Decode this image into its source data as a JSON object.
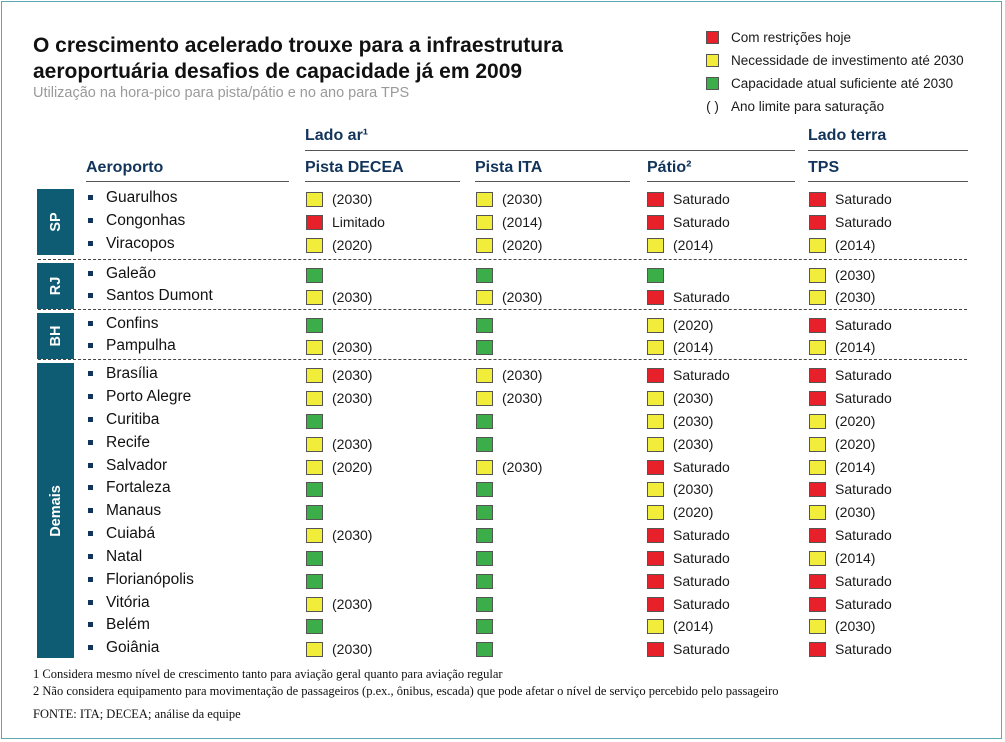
{
  "title": "O crescimento acelerado trouxe para a infraestrutura aeroportuária desafios de capacidade já em 2009",
  "subtitle": "Utilização na hora-pico para pista/pátio e no ano para TPS",
  "legend": [
    {
      "label": "Com restrições hoje",
      "color": "#e8202a"
    },
    {
      "label": "Necessidade de investimento até 2030",
      "color": "#f2ec3a"
    },
    {
      "label": "Capacidade atual suficiente até 2030",
      "color": "#3cae49"
    },
    {
      "label": "Ano limite para saturação",
      "symbol": "( )"
    }
  ],
  "headers": {
    "lado_ar": "Lado ar¹",
    "lado_terra": "Lado terra",
    "aeroporto": "Aeroporto",
    "columns": [
      "Pista DECEA",
      "Pista ITA",
      "Pátio²",
      "TPS"
    ]
  },
  "colors": {
    "R": "#e8202a",
    "Y": "#f2ec3a",
    "G": "#3cae49",
    "group_bg": "#0e5c74"
  },
  "chart_data": {
    "type": "table",
    "groups": [
      {
        "name": "SP",
        "airports": [
          {
            "name": "Guarulhos",
            "cells": [
              [
                "Y",
                "(2030)"
              ],
              [
                "Y",
                "(2030)"
              ],
              [
                "R",
                "Saturado"
              ],
              [
                "R",
                "Saturado"
              ]
            ]
          },
          {
            "name": "Congonhas",
            "cells": [
              [
                "R",
                "Limitado"
              ],
              [
                "Y",
                "(2014)"
              ],
              [
                "R",
                "Saturado"
              ],
              [
                "R",
                "Saturado"
              ]
            ]
          },
          {
            "name": "Viracopos",
            "cells": [
              [
                "Y",
                "(2020)"
              ],
              [
                "Y",
                "(2020)"
              ],
              [
                "Y",
                "(2014)"
              ],
              [
                "Y",
                "(2014)"
              ]
            ]
          }
        ]
      },
      {
        "name": "RJ",
        "airports": [
          {
            "name": "Galeão",
            "cells": [
              [
                "G",
                ""
              ],
              [
                "G",
                ""
              ],
              [
                "G",
                ""
              ],
              [
                "Y",
                "(2030)"
              ]
            ]
          },
          {
            "name": "Santos Dumont",
            "cells": [
              [
                "Y",
                "(2030)"
              ],
              [
                "Y",
                "(2030)"
              ],
              [
                "R",
                "Saturado"
              ],
              [
                "Y",
                "(2030)"
              ]
            ]
          }
        ]
      },
      {
        "name": "BH",
        "airports": [
          {
            "name": "Confins",
            "cells": [
              [
                "G",
                ""
              ],
              [
                "G",
                ""
              ],
              [
                "Y",
                "(2020)"
              ],
              [
                "R",
                "Saturado"
              ]
            ]
          },
          {
            "name": "Pampulha",
            "cells": [
              [
                "Y",
                "(2030)"
              ],
              [
                "G",
                ""
              ],
              [
                "Y",
                "(2014)"
              ],
              [
                "Y",
                "(2014)"
              ]
            ]
          }
        ]
      },
      {
        "name": "Demais",
        "airports": [
          {
            "name": "Brasília",
            "cells": [
              [
                "Y",
                "(2030)"
              ],
              [
                "Y",
                "(2030)"
              ],
              [
                "R",
                "Saturado"
              ],
              [
                "R",
                "Saturado"
              ]
            ]
          },
          {
            "name": "Porto Alegre",
            "cells": [
              [
                "Y",
                "(2030)"
              ],
              [
                "Y",
                "(2030)"
              ],
              [
                "Y",
                "(2030)"
              ],
              [
                "R",
                "Saturado"
              ]
            ]
          },
          {
            "name": "Curitiba",
            "cells": [
              [
                "G",
                ""
              ],
              [
                "G",
                ""
              ],
              [
                "Y",
                "(2030)"
              ],
              [
                "Y",
                "(2020)"
              ]
            ]
          },
          {
            "name": "Recife",
            "cells": [
              [
                "Y",
                "(2030)"
              ],
              [
                "G",
                ""
              ],
              [
                "Y",
                "(2030)"
              ],
              [
                "Y",
                "(2020)"
              ]
            ]
          },
          {
            "name": "Salvador",
            "cells": [
              [
                "Y",
                "(2020)"
              ],
              [
                "Y",
                "(2030)"
              ],
              [
                "R",
                "Saturado"
              ],
              [
                "Y",
                "(2014)"
              ]
            ]
          },
          {
            "name": "Fortaleza",
            "cells": [
              [
                "G",
                ""
              ],
              [
                "G",
                ""
              ],
              [
                "Y",
                "(2030)"
              ],
              [
                "R",
                "Saturado"
              ]
            ]
          },
          {
            "name": "Manaus",
            "cells": [
              [
                "G",
                ""
              ],
              [
                "G",
                ""
              ],
              [
                "Y",
                "(2020)"
              ],
              [
                "Y",
                "(2030)"
              ]
            ]
          },
          {
            "name": "Cuiabá",
            "cells": [
              [
                "Y",
                "(2030)"
              ],
              [
                "G",
                ""
              ],
              [
                "R",
                "Saturado"
              ],
              [
                "R",
                "Saturado"
              ]
            ]
          },
          {
            "name": "Natal",
            "cells": [
              [
                "G",
                ""
              ],
              [
                "G",
                ""
              ],
              [
                "R",
                "Saturado"
              ],
              [
                "Y",
                "(2014)"
              ]
            ]
          },
          {
            "name": "Florianópolis",
            "cells": [
              [
                "G",
                ""
              ],
              [
                "G",
                ""
              ],
              [
                "R",
                "Saturado"
              ],
              [
                "R",
                "Saturado"
              ]
            ]
          },
          {
            "name": "Vitória",
            "cells": [
              [
                "Y",
                "(2030)"
              ],
              [
                "G",
                ""
              ],
              [
                "R",
                "Saturado"
              ],
              [
                "R",
                "Saturado"
              ]
            ]
          },
          {
            "name": "Belém",
            "cells": [
              [
                "G",
                ""
              ],
              [
                "G",
                ""
              ],
              [
                "Y",
                "(2014)"
              ],
              [
                "Y",
                "(2030)"
              ]
            ]
          },
          {
            "name": "Goiânia",
            "cells": [
              [
                "Y",
                "(2030)"
              ],
              [
                "G",
                ""
              ],
              [
                "R",
                "Saturado"
              ],
              [
                "R",
                "Saturado"
              ]
            ]
          }
        ]
      }
    ]
  },
  "footnotes": [
    "1 Considera mesmo nível de crescimento tanto para aviação geral quanto para aviação regular",
    "2 Não considera equipamento para movimentação de passageiros (p.ex., ônibus, escada) que pode afetar o nível de serviço percebido pelo passageiro"
  ],
  "source": "FONTE: ITA; DECEA; análise da equipe"
}
